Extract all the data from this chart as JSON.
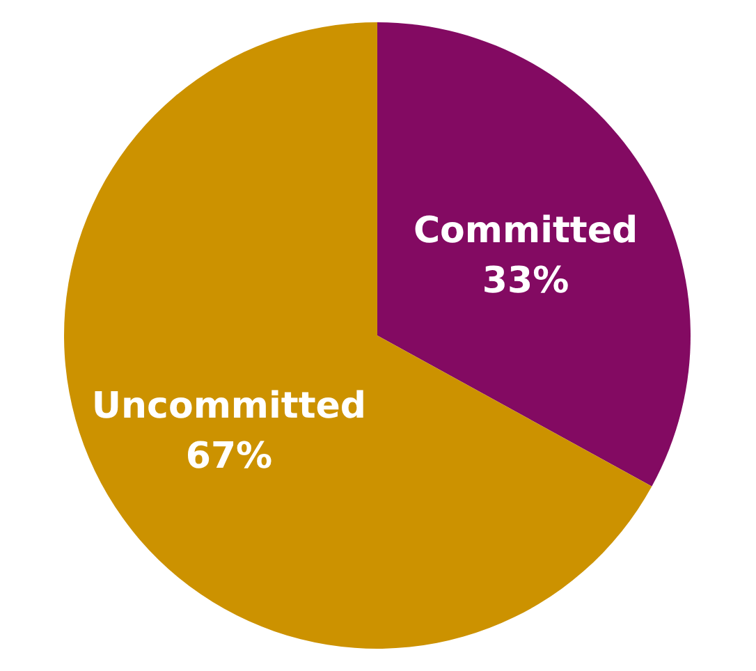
{
  "chart_data": {
    "type": "pie",
    "categories": [
      "Committed",
      "Uncommitted"
    ],
    "values": [
      33,
      67
    ],
    "colors": [
      "#830a62",
      "#cc9200"
    ],
    "value_labels": [
      "33%",
      "67%"
    ],
    "legend": false
  }
}
